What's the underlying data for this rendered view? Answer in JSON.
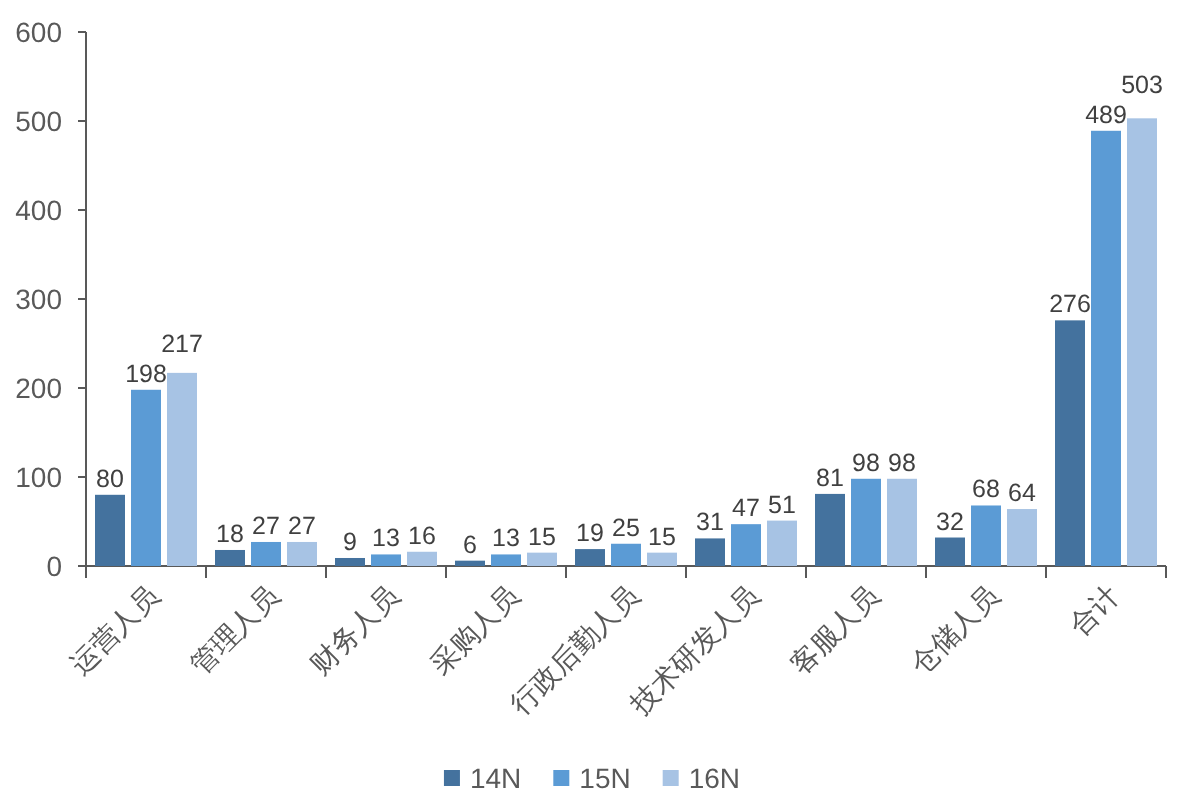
{
  "chart_data": {
    "type": "bar",
    "categories": [
      "运营人员",
      "管理人员",
      "财务人员",
      "采购人员",
      "行政后勤人员",
      "技术研发人员",
      "客服人员",
      "仓储人员",
      "合计"
    ],
    "series": [
      {
        "name": "14N",
        "color": "#44729e",
        "values": [
          80,
          18,
          9,
          6,
          19,
          31,
          81,
          32,
          276
        ]
      },
      {
        "name": "15N",
        "color": "#5b9bd5",
        "values": [
          198,
          27,
          13,
          13,
          25,
          47,
          98,
          68,
          489
        ]
      },
      {
        "name": "16N",
        "color": "#a7c3e4",
        "values": [
          217,
          27,
          16,
          15,
          15,
          51,
          98,
          64,
          503
        ]
      }
    ],
    "ylim": [
      0,
      600
    ],
    "yticks": [
      0,
      100,
      200,
      300,
      400,
      500,
      600
    ],
    "data_labels": true,
    "legend": "bottom"
  }
}
